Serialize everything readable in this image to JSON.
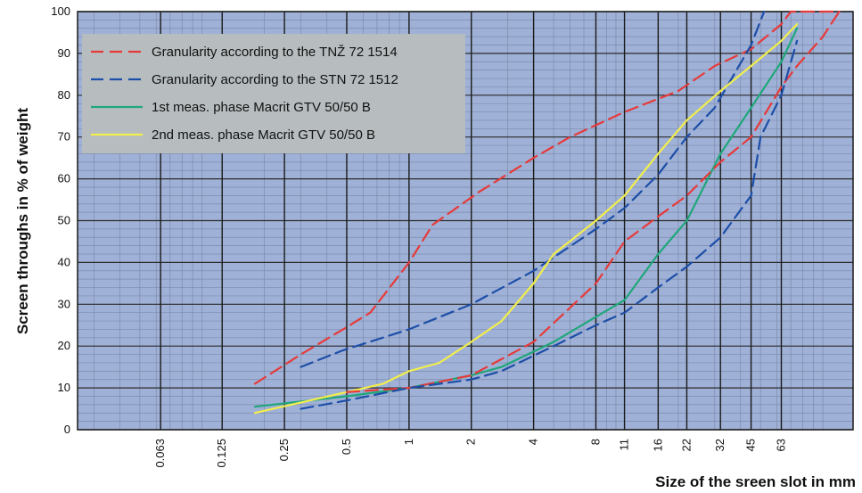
{
  "chart_data": {
    "type": "line",
    "title": "",
    "xlabel": "Size of the sreen slot in mm",
    "ylabel": "Screen throughs in % of weight",
    "x_scale": "log",
    "x_ticks": [
      "0.063",
      "0.125",
      "0.25",
      "0.5",
      "1",
      "2",
      "4",
      "8",
      "11",
      "16",
      "22",
      "32",
      "45",
      "63"
    ],
    "x_tick_values": [
      0.063,
      0.125,
      0.25,
      0.5,
      1,
      2,
      4,
      8,
      11,
      16,
      22,
      32,
      45,
      63
    ],
    "xlim": [
      0.025,
      140
    ],
    "ylim": [
      0,
      100
    ],
    "y_ticks": [
      "0",
      "10",
      "20",
      "30",
      "40",
      "50",
      "60",
      "70",
      "80",
      "90",
      "100"
    ],
    "grid": true,
    "legend_position": "top-left",
    "plot_background": "#9fb1d6",
    "series": [
      {
        "name": "Granularity according to the TNŽ 72 1514",
        "color": "#e63a3a",
        "style": "dashed",
        "points": [
          [
            0.18,
            11
          ],
          [
            0.3,
            18
          ],
          [
            0.48,
            24
          ],
          [
            0.65,
            28
          ],
          [
            1,
            40
          ],
          [
            1.3,
            49
          ],
          [
            2.2,
            57
          ],
          [
            4,
            65
          ],
          [
            6,
            70
          ],
          [
            11,
            76
          ],
          [
            20,
            81
          ],
          [
            30,
            87
          ],
          [
            45,
            91
          ],
          [
            63,
            97
          ],
          [
            70,
            100
          ],
          [
            90,
            100
          ],
          [
            120,
            100
          ]
        ]
      },
      {
        "name": "Granularity according to the STN 72 1512",
        "color": "#1d4ea8",
        "style": "dashed",
        "points": [
          [
            0.3,
            15
          ],
          [
            0.48,
            19
          ],
          [
            1,
            24
          ],
          [
            2,
            30
          ],
          [
            4,
            38
          ],
          [
            8,
            48
          ],
          [
            11,
            53
          ],
          [
            16,
            61
          ],
          [
            22,
            70
          ],
          [
            30,
            77
          ],
          [
            45,
            92
          ],
          [
            52,
            100
          ]
        ]
      },
      {
        "name": "1st meas. phase Macrit GTV 50/50 B",
        "color": "#1fa77a",
        "style": "solid",
        "points": [
          [
            0.18,
            5.5
          ],
          [
            0.5,
            8
          ],
          [
            1,
            10
          ],
          [
            2,
            13
          ],
          [
            2.8,
            15
          ],
          [
            5,
            21
          ],
          [
            8,
            27
          ],
          [
            11,
            31
          ],
          [
            16,
            42
          ],
          [
            22,
            50
          ],
          [
            32,
            66
          ],
          [
            45,
            77
          ],
          [
            63,
            88
          ],
          [
            75,
            96
          ]
        ]
      },
      {
        "name": "2nd meas. phase Macrit GTV 50/50 B",
        "color": "#f2ee4c",
        "style": "solid",
        "points": [
          [
            0.18,
            4
          ],
          [
            0.5,
            9
          ],
          [
            0.75,
            11
          ],
          [
            1,
            14
          ],
          [
            1.4,
            16
          ],
          [
            2,
            21
          ],
          [
            2.8,
            26
          ],
          [
            4,
            35
          ],
          [
            5,
            42
          ],
          [
            8,
            50
          ],
          [
            11,
            56
          ],
          [
            16,
            66
          ],
          [
            22,
            74
          ],
          [
            32,
            81
          ],
          [
            45,
            87
          ],
          [
            63,
            93
          ],
          [
            75,
            97
          ]
        ]
      },
      {
        "name": "",
        "color": "#e63a3a",
        "style": "dashed",
        "points": [
          [
            0.5,
            9
          ],
          [
            1,
            10
          ],
          [
            2,
            13
          ],
          [
            4,
            21
          ],
          [
            8,
            35
          ],
          [
            11,
            45
          ],
          [
            16,
            51
          ],
          [
            22,
            56
          ],
          [
            32,
            64
          ],
          [
            45,
            70
          ],
          [
            63,
            82
          ],
          [
            75,
            87
          ],
          [
            100,
            94
          ],
          [
            120,
            100
          ]
        ]
      },
      {
        "name": "",
        "color": "#1d4ea8",
        "style": "dashed",
        "points": [
          [
            0.3,
            5
          ],
          [
            0.5,
            7
          ],
          [
            1,
            10
          ],
          [
            2,
            12
          ],
          [
            2.8,
            14
          ],
          [
            5,
            20
          ],
          [
            8,
            25
          ],
          [
            11,
            28
          ],
          [
            16,
            34
          ],
          [
            22,
            39
          ],
          [
            32,
            46
          ],
          [
            45,
            56
          ],
          [
            50,
            70
          ],
          [
            63,
            80
          ],
          [
            75,
            93
          ]
        ]
      }
    ]
  }
}
